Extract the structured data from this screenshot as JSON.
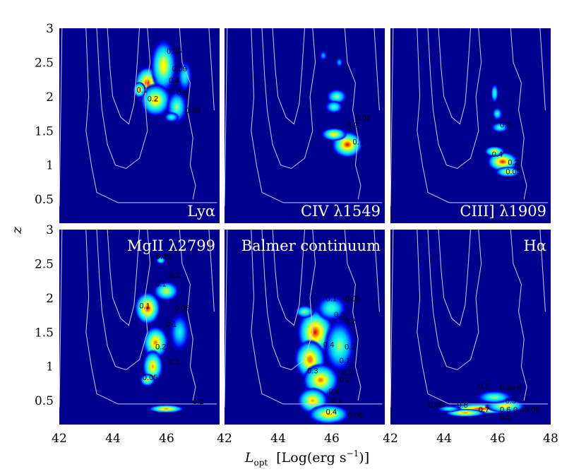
{
  "chart_data": {
    "type": "heatmap",
    "xlabel": "L_opt  [Log(erg s⁻¹)]",
    "xlabel_main": "L",
    "xlabel_sub": "opt",
    "xlabel_units": "[Log(erg s",
    "xlabel_exp": "−1",
    "xlabel_close": ")]",
    "ylabel": "z",
    "xlim": [
      42,
      48
    ],
    "ylim": [
      0.15,
      3.0
    ],
    "x_ticks": [
      "42",
      "44",
      "46",
      "42",
      "44",
      "46",
      "42",
      "44",
      "46",
      "48"
    ],
    "y_ticks": [
      "3",
      "2.5",
      "2",
      "1.5",
      "1",
      "0.5"
    ],
    "grid": false,
    "colors": {
      "background": "#00008f",
      "outline": "#c8c8ff",
      "contour": "#102040"
    },
    "panels": [
      {
        "label": "Lyα",
        "label_pos": "bottom-right",
        "blobs": [
          [
            45.3,
            2.2,
            0.5,
            0.25,
            1.0
          ],
          [
            45.9,
            2.45,
            0.5,
            0.4,
            0.8
          ],
          [
            45.6,
            1.95,
            0.6,
            0.25,
            0.85
          ],
          [
            46.4,
            1.85,
            0.4,
            0.25,
            0.6
          ],
          [
            46.7,
            2.3,
            0.3,
            0.25,
            0.45
          ],
          [
            45.0,
            2.1,
            0.25,
            0.12,
            0.9
          ],
          [
            46.2,
            1.7,
            0.3,
            0.08,
            0.5
          ]
        ],
        "contour_labels": [
          {
            "x": 46.3,
            "y": 2.63,
            "t": "0.05"
          },
          {
            "x": 46.5,
            "y": 2.37,
            "t": "0.09"
          },
          {
            "x": 46.3,
            "y": 2.2,
            "t": "0.4"
          },
          {
            "x": 45.1,
            "y": 2.06,
            "t": "0.1"
          },
          {
            "x": 45.5,
            "y": 1.93,
            "t": "0.2"
          },
          {
            "x": 46.6,
            "y": 2.02,
            "t": "0.3"
          },
          {
            "x": 47.0,
            "y": 1.76,
            "t": "0.05"
          }
        ]
      },
      {
        "label": "CIV λ1549",
        "label_pos": "bottom-right",
        "blobs": [
          [
            46.6,
            1.3,
            0.6,
            0.2,
            1.0
          ],
          [
            46.1,
            1.45,
            0.5,
            0.1,
            0.8
          ],
          [
            46.2,
            2.0,
            0.4,
            0.12,
            0.6
          ],
          [
            46.1,
            1.85,
            0.35,
            0.1,
            0.55
          ],
          [
            45.7,
            2.6,
            0.15,
            0.08,
            0.35
          ],
          [
            46.3,
            2.5,
            0.15,
            0.08,
            0.35
          ]
        ],
        "contour_labels": [
          {
            "x": 47.2,
            "y": 1.65,
            "t": "0.05"
          },
          {
            "x": 46.8,
            "y": 1.55,
            "t": "0.2"
          },
          {
            "x": 47.0,
            "y": 1.3,
            "t": "0.1"
          }
        ]
      },
      {
        "label": "CIII] λ1909",
        "label_pos": "bottom-right",
        "blobs": [
          [
            46.2,
            1.05,
            0.6,
            0.15,
            1.0
          ],
          [
            45.9,
            1.2,
            0.4,
            0.08,
            0.8
          ],
          [
            46.4,
            0.9,
            0.5,
            0.08,
            0.75
          ],
          [
            45.9,
            2.05,
            0.15,
            0.15,
            0.55
          ],
          [
            46.1,
            1.55,
            0.35,
            0.08,
            0.55
          ],
          [
            46.0,
            1.75,
            0.2,
            0.1,
            0.5
          ]
        ],
        "contour_labels": [
          {
            "x": 46.3,
            "y": 1.55,
            "t": "0.2"
          },
          {
            "x": 46.0,
            "y": 1.12,
            "t": "0.4"
          },
          {
            "x": 46.6,
            "y": 1.0,
            "t": "0.2"
          },
          {
            "x": 46.6,
            "y": 0.87,
            "t": "0.05"
          }
        ]
      },
      {
        "label": "MgII λ2799",
        "label_pos": "top-right",
        "blobs": [
          [
            45.3,
            1.85,
            0.5,
            0.25,
            1.0
          ],
          [
            45.6,
            1.35,
            0.5,
            0.25,
            0.9
          ],
          [
            45.5,
            1.0,
            0.4,
            0.25,
            0.85
          ],
          [
            45.3,
            0.8,
            0.3,
            0.1,
            0.7
          ],
          [
            46.0,
            0.38,
            0.7,
            0.06,
            0.9
          ],
          [
            46.0,
            2.1,
            0.5,
            0.15,
            0.7
          ],
          [
            45.8,
            2.55,
            0.2,
            0.06,
            0.55
          ],
          [
            46.5,
            1.5,
            0.4,
            0.3,
            0.45
          ]
        ],
        "contour_labels": [
          {
            "x": 45.9,
            "y": 2.57,
            "t": "0.05"
          },
          {
            "x": 46.3,
            "y": 2.3,
            "t": "0.3"
          },
          {
            "x": 45.8,
            "y": 2.17,
            "t": "0.1"
          },
          {
            "x": 45.2,
            "y": 1.85,
            "t": "0.1"
          },
          {
            "x": 46.6,
            "y": 1.82,
            "t": "0.05"
          },
          {
            "x": 46.2,
            "y": 1.58,
            "t": "0.1"
          },
          {
            "x": 45.8,
            "y": 1.25,
            "t": "0.2"
          },
          {
            "x": 46.3,
            "y": 1.03,
            "t": "0.1"
          },
          {
            "x": 45.4,
            "y": 0.8,
            "t": "0.05"
          },
          {
            "x": 47.2,
            "y": 0.45,
            "t": "0.2"
          }
        ]
      },
      {
        "label": "Balmer continuum",
        "label_pos": "top-right",
        "blobs": [
          [
            45.4,
            1.5,
            0.7,
            0.35,
            1.0
          ],
          [
            45.2,
            1.1,
            0.6,
            0.3,
            0.95
          ],
          [
            45.6,
            0.8,
            0.7,
            0.25,
            0.9
          ],
          [
            45.3,
            0.5,
            0.6,
            0.2,
            0.85
          ],
          [
            45.9,
            0.3,
            0.8,
            0.15,
            0.85
          ],
          [
            46.3,
            1.3,
            0.6,
            0.4,
            0.6
          ],
          [
            46.0,
            1.85,
            0.6,
            0.2,
            0.55
          ],
          [
            45.0,
            1.8,
            0.4,
            0.1,
            0.6
          ]
        ],
        "contour_labels": [
          {
            "x": 46.0,
            "y": 1.95,
            "t": "0.1"
          },
          {
            "x": 46.8,
            "y": 1.95,
            "t": "0.05"
          },
          {
            "x": 46.3,
            "y": 1.72,
            "t": "0.3"
          },
          {
            "x": 46.7,
            "y": 1.62,
            "t": "0.2"
          },
          {
            "x": 45.9,
            "y": 1.28,
            "t": "0.4"
          },
          {
            "x": 46.7,
            "y": 1.25,
            "t": "0.2"
          },
          {
            "x": 46.5,
            "y": 1.05,
            "t": "0.1"
          },
          {
            "x": 45.3,
            "y": 0.9,
            "t": "0.3"
          },
          {
            "x": 46.6,
            "y": 0.87,
            "t": "0.2"
          },
          {
            "x": 46.5,
            "y": 0.77,
            "t": "0.2"
          },
          {
            "x": 46.1,
            "y": 0.6,
            "t": "0.4"
          },
          {
            "x": 46.2,
            "y": 0.46,
            "t": "0.1"
          },
          {
            "x": 46.0,
            "y": 0.3,
            "t": "0.4"
          },
          {
            "x": 46.9,
            "y": 0.25,
            "t": "0.05"
          }
        ]
      },
      {
        "label": "Hα",
        "label_pos": "top-right",
        "blobs": [
          [
            45.4,
            0.38,
            1.4,
            0.08,
            1.0
          ],
          [
            44.8,
            0.32,
            0.8,
            0.06,
            0.9
          ],
          [
            46.3,
            0.42,
            0.8,
            0.1,
            0.8
          ],
          [
            45.9,
            0.55,
            0.7,
            0.1,
            0.6
          ],
          [
            44.2,
            0.38,
            0.5,
            0.05,
            0.5
          ]
        ],
        "contour_labels": [
          {
            "x": 45.5,
            "y": 0.67,
            "t": "0.7"
          },
          {
            "x": 46.3,
            "y": 0.65,
            "t": "0.6"
          },
          {
            "x": 46.7,
            "y": 0.65,
            "t": "0.4"
          },
          {
            "x": 43.7,
            "y": 0.4,
            "t": "0.05"
          },
          {
            "x": 44.7,
            "y": 0.4,
            "t": "0.8"
          },
          {
            "x": 46.5,
            "y": 0.46,
            "t": "0.3"
          },
          {
            "x": 45.5,
            "y": 0.33,
            "t": "0.7"
          },
          {
            "x": 46.3,
            "y": 0.33,
            "t": "0.6"
          },
          {
            "x": 46.8,
            "y": 0.33,
            "t": "0.4"
          },
          {
            "x": 47.3,
            "y": 0.33,
            "t": "0.05"
          },
          {
            "x": 46.3,
            "y": 0.22,
            "t": "0.5"
          }
        ]
      }
    ]
  }
}
